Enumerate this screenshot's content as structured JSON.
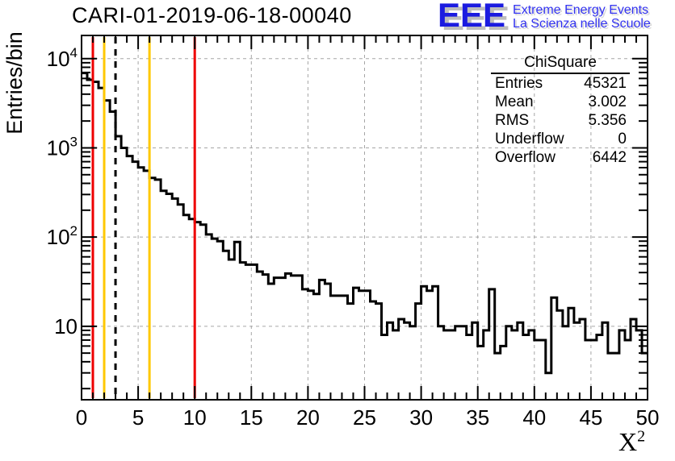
{
  "title": "CARI-01-2019-06-18-00040",
  "logo": {
    "acronym": "EEE",
    "line1": "Extreme Energy Events",
    "line2": "La Scienza nelle Scuole",
    "blue": "#2323e8"
  },
  "stats": {
    "title": "ChiSquare",
    "rows": [
      {
        "label": "Entries",
        "value": "45321"
      },
      {
        "label": "Mean",
        "value": "3.002"
      },
      {
        "label": "RMS",
        "value": "5.356"
      },
      {
        "label": "Underflow",
        "value": "0"
      },
      {
        "label": "Overflow",
        "value": "6442"
      }
    ]
  },
  "axes": {
    "y_title": "Entries/bin",
    "x_title": "X",
    "x_title_sup": "2",
    "x_ticks": [
      0,
      5,
      10,
      15,
      20,
      25,
      30,
      35,
      40,
      45,
      50
    ],
    "y_decades": [
      1,
      2,
      3,
      4
    ]
  },
  "colors": {
    "frame": "#000000",
    "grid": "#a6a6a6",
    "histogram": "#000000",
    "red_line": "#ee0000",
    "yellow_line": "#ffc800"
  },
  "chart_data": {
    "type": "bar",
    "subtype": "step-histogram",
    "title": "CARI-01-2019-06-18-00040",
    "xlabel": "X^2",
    "ylabel": "Entries/bin",
    "yscale": "log",
    "xlim": [
      0,
      50
    ],
    "ylim": [
      1.5,
      18200
    ],
    "grid": true,
    "bin_start": 0,
    "bin_width": 0.5,
    "values": [
      6900,
      5800,
      5500,
      4700,
      3400,
      2550,
      1350,
      1000,
      810,
      700,
      604,
      553,
      460,
      440,
      330,
      305,
      270,
      232,
      177,
      159,
      147,
      138,
      107,
      96,
      90,
      70,
      56,
      88,
      52,
      49,
      49,
      41,
      38,
      30,
      35,
      35,
      39,
      37,
      37,
      26,
      25,
      23,
      33,
      30,
      22,
      22,
      22,
      18,
      27,
      25,
      25,
      19,
      18,
      8,
      11,
      9,
      12,
      11,
      10,
      18,
      28,
      25,
      28,
      10,
      9,
      9,
      10,
      10,
      8,
      11,
      6,
      9,
      26,
      5,
      6,
      10,
      9,
      11,
      8,
      9,
      7,
      7,
      3,
      21,
      15,
      10,
      16,
      11,
      12,
      7,
      7,
      8,
      11,
      5,
      5,
      9,
      7,
      12,
      9,
      5
    ],
    "marker_lines": [
      {
        "x": 1,
        "color": "#ee0000",
        "style": "solid",
        "name": "red-line-x1"
      },
      {
        "x": 2,
        "color": "#ffc800",
        "style": "solid",
        "name": "yellow-line-x2"
      },
      {
        "x": 3,
        "color": "#000000",
        "style": "dashed",
        "name": "black-dashed-line-x3"
      },
      {
        "x": 6,
        "color": "#ffc800",
        "style": "solid",
        "name": "yellow-line-x6"
      },
      {
        "x": 10,
        "color": "#ee0000",
        "style": "solid",
        "name": "red-line-x10"
      }
    ]
  }
}
